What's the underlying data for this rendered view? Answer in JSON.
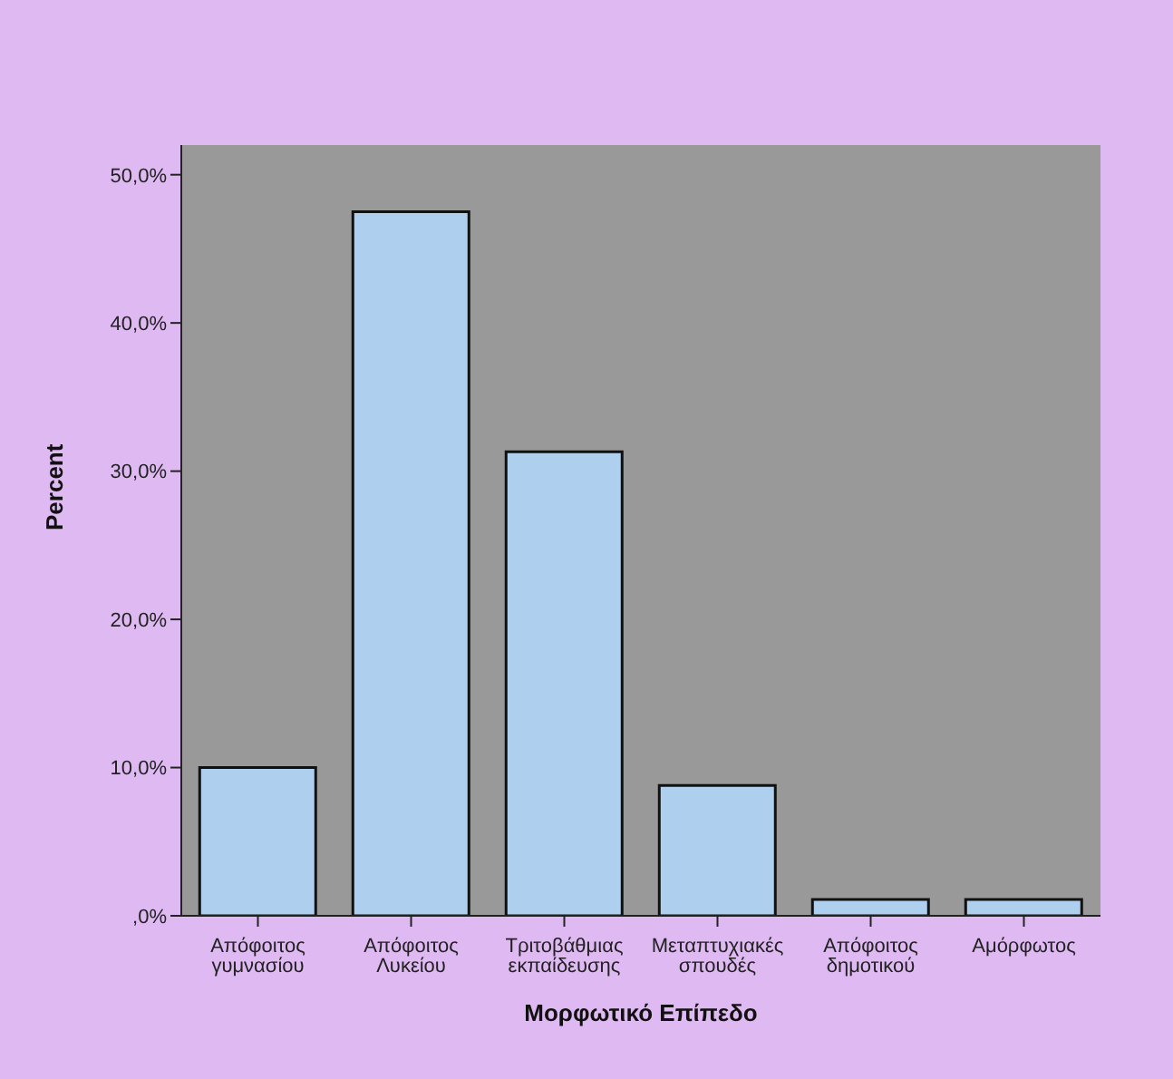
{
  "chart_data": {
    "type": "bar",
    "xlabel": "Μορφωτικό Επίπεδο",
    "ylabel": "Percent",
    "categories": [
      "Απόφοιτος\nγυμνασίου",
      "Απόφοιτος\nΛυκείου",
      "Τριτοβάθμιας\nεκπαίδευσης",
      "Μεταπτυχιακές\nσπουδές",
      "Απόφοιτος\nδημοτικού",
      "Αμόρφωτος"
    ],
    "values": [
      10.0,
      47.5,
      31.3,
      8.8,
      1.1,
      1.1
    ],
    "color": "#aed0ee",
    "ylim": [
      0,
      52
    ],
    "yticks": [
      {
        "value": 0,
        "label": ",0%"
      },
      {
        "value": 10,
        "label": "10,0%"
      },
      {
        "value": 20,
        "label": "20,0%"
      },
      {
        "value": 30,
        "label": "30,0%"
      },
      {
        "value": 40,
        "label": "40,0%"
      },
      {
        "value": 50,
        "label": "50,0%"
      }
    ],
    "legend": false
  }
}
